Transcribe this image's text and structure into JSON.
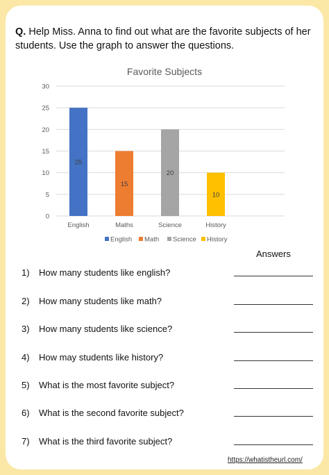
{
  "question": {
    "prefix": "Q.",
    "text": "Help Miss. Anna to find out what are the favorite subjects of her students. Use the graph to answer the questions."
  },
  "chart_data": {
    "type": "bar",
    "title": "Favorite Subjects",
    "categories": [
      "English",
      "Maths",
      "Science",
      "History"
    ],
    "values": [
      25,
      15,
      20,
      10
    ],
    "data_labels": [
      "25",
      "15",
      "20",
      "10"
    ],
    "colors": [
      "#4472c4",
      "#ed7d31",
      "#a5a5a5",
      "#ffc000"
    ],
    "legend": [
      "English",
      "Math",
      "Science",
      "History"
    ],
    "legend_position": "bottom",
    "ylim": [
      0,
      30
    ],
    "yticks": [
      "0",
      "5",
      "10",
      "15",
      "20",
      "25",
      "30"
    ],
    "grid": true
  },
  "answers_heading": "Answers",
  "questions": [
    {
      "num": "1)",
      "text": "How many students like english?"
    },
    {
      "num": "2)",
      "text": "How many students like math?"
    },
    {
      "num": "3)",
      "text": "How many students like science?"
    },
    {
      "num": "4)",
      "text": "How may students like history?"
    },
    {
      "num": "5)",
      "text": "What is the most favorite subject?"
    },
    {
      "num": "6)",
      "text": "What is the second favorite subject?"
    },
    {
      "num": "7)",
      "text": "What is the third favorite subject?"
    }
  ],
  "footer_url": "https://whatistheurl.com/"
}
